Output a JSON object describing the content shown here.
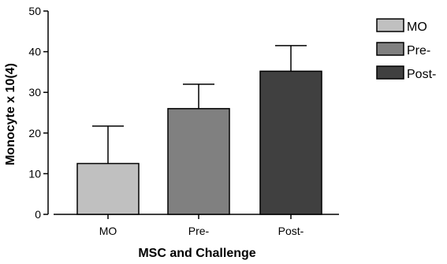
{
  "chart_data": {
    "type": "bar",
    "title": "",
    "xlabel": "MSC and Challenge",
    "ylabel": "Monocyte x 10(4)",
    "categories": [
      "MO",
      "Pre-",
      "Post-"
    ],
    "values": [
      12.5,
      26,
      35.2
    ],
    "error_upper": [
      21.7,
      32,
      41.5
    ],
    "ylim": [
      0,
      50
    ],
    "yticks": [
      0,
      10,
      20,
      30,
      40,
      50
    ],
    "grid": false,
    "legend": {
      "placement": "top-right",
      "entries": [
        "MO",
        "Pre-",
        "Post-"
      ]
    },
    "colors": [
      "#c0c0c0",
      "#808080",
      "#404040"
    ]
  }
}
